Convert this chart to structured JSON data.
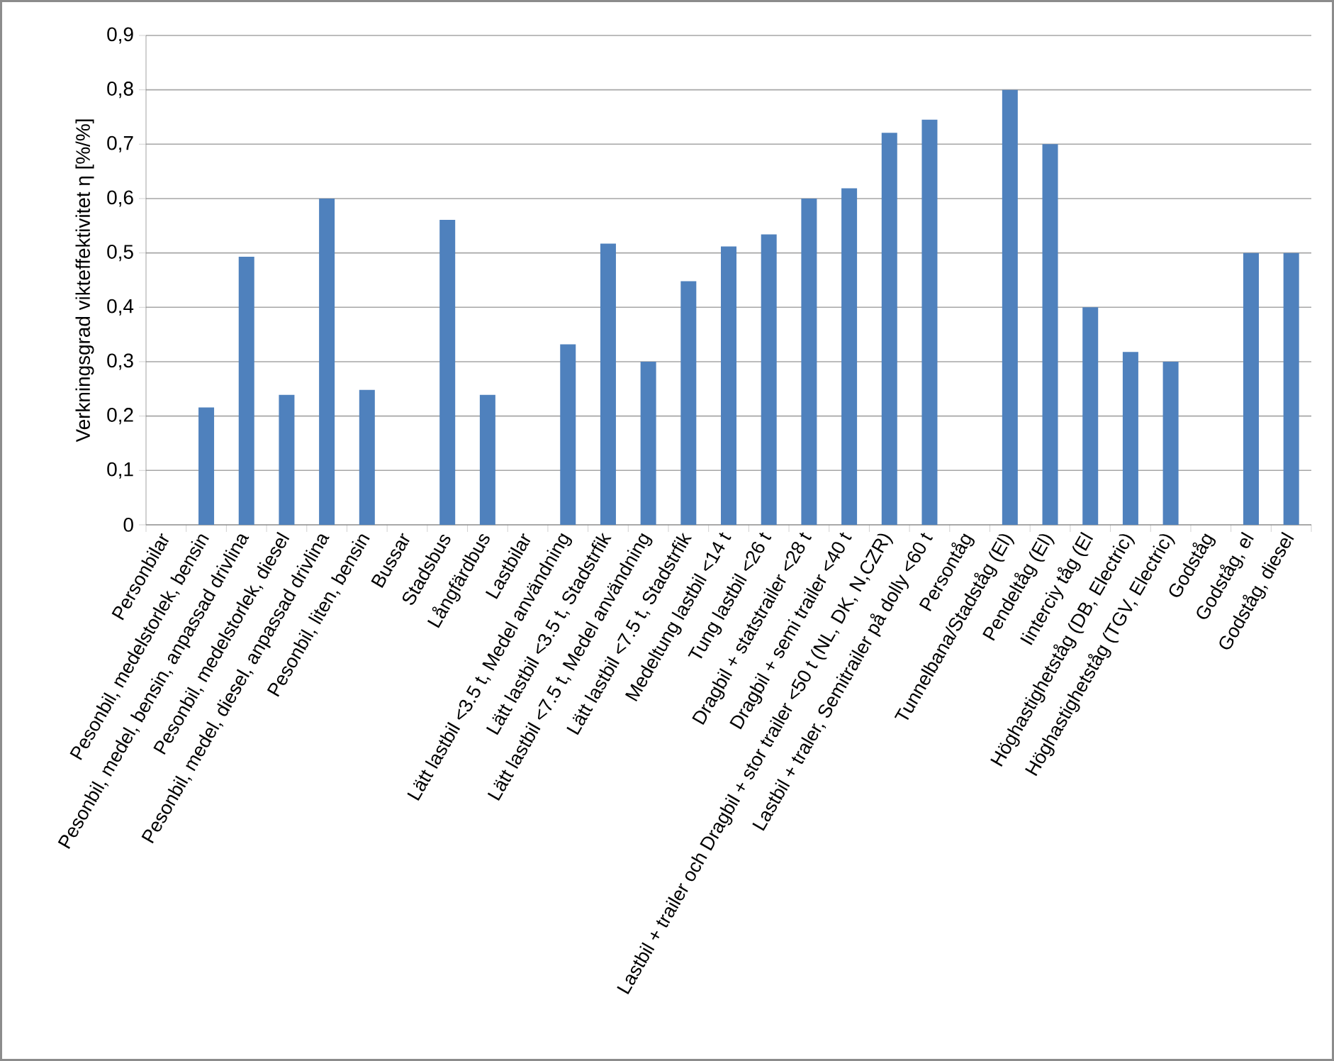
{
  "chart_data": {
    "type": "bar",
    "ylabel": "Verkningsgrad vikteffektivitet  η  [%/%]",
    "categories": [
      "Personbilar",
      "Pesonbil, medelstorlek, bensin",
      "Pesonbil, medel, bensin, anpassad drivlina",
      "Pesonbil, medelstorlek, diesel",
      "Pesonbil, medel, diesel, anpassad drivlina",
      "Pesonbil, liten, bensin",
      "Bussar",
      "Stadsbus",
      "Långfärdbus",
      "Lastbilar",
      "Lätt lastbil <3.5 t, Medel användning",
      "Lätt lastbil <3.5 t, Stadstrfik",
      "Lätt lastbil <7.5 t, Medel användning",
      "Lätt lastbil <7.5 t, Stadstrfik",
      "Medeltung lastbil <14 t",
      "Tung lastbil <26 t",
      "Dragbil + statstrailer <28 t",
      "Dragbil + semi trailer <40 t",
      "Lastbil + trailer och Dragbil + stor trailer <50 t (NL, DK, N,CZR)",
      "Lastbil + traler, Semitrailer på dolly <60 t",
      "Persontåg",
      "Tunnelbana/Stadståg (El)",
      "Pendeltåg (El)",
      "Iinterciy tåg (El",
      "Höghastighetståg (DB, Electric)",
      "Höghastighetståg (TGV, Electric)",
      "Godståg",
      "Godståg, el",
      "Godståg, diesel"
    ],
    "values": [
      null,
      0.216,
      0.493,
      0.239,
      0.6,
      0.248,
      null,
      0.561,
      0.239,
      null,
      0.332,
      0.517,
      0.3,
      0.448,
      0.512,
      0.534,
      0.6,
      0.619,
      0.721,
      0.745,
      null,
      0.8,
      0.7,
      0.4,
      0.318,
      0.3,
      null,
      0.5,
      0.5
    ],
    "color": "#4f81bd",
    "ylim": [
      0,
      0.9
    ],
    "yticks": [
      0,
      {
        "value": 0.1,
        "label": "0,1"
      },
      {
        "value": 0.2,
        "label": "0,2"
      },
      {
        "value": 0.3,
        "label": "0,3"
      },
      {
        "value": 0.4,
        "label": "0,4"
      },
      {
        "value": 0.5,
        "label": "0,5"
      },
      {
        "value": 0.6,
        "label": "0,6"
      },
      {
        "value": 0.7,
        "label": "0,7"
      },
      {
        "value": 0.8,
        "label": "0,8"
      },
      {
        "value": 0.9,
        "label": "0,9"
      }
    ],
    "grid": "y"
  }
}
